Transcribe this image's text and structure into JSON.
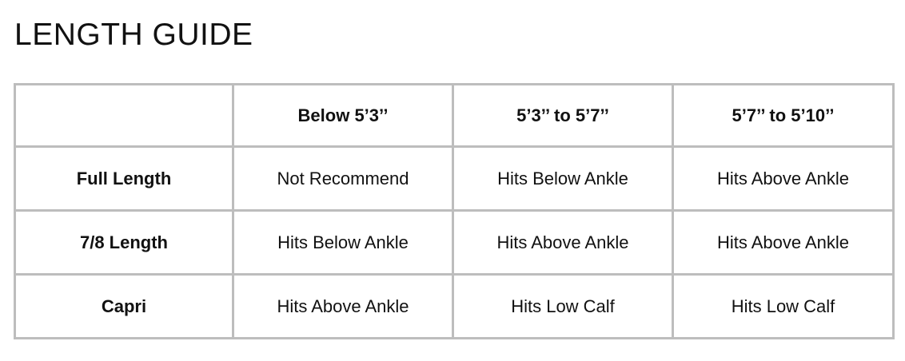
{
  "title": "LENGTH GUIDE",
  "table": {
    "corner": "",
    "columns": [
      "Below 5’3’’",
      "5’3’’ to 5’7’’",
      "5’7’’ to 5’10’’"
    ],
    "rows": [
      {
        "label": "Full Length",
        "cells": [
          "Not Recommend",
          "Hits Below Ankle",
          "Hits Above Ankle"
        ]
      },
      {
        "label": "7/8 Length",
        "cells": [
          "Hits Below Ankle",
          "Hits Above Ankle",
          "Hits Above Ankle"
        ]
      },
      {
        "label": "Capri",
        "cells": [
          "Hits Above Ankle",
          "Hits Low Calf",
          "Hits Low Calf"
        ]
      }
    ]
  },
  "colors": {
    "border": "#bdbdbd",
    "text": "#111111"
  }
}
